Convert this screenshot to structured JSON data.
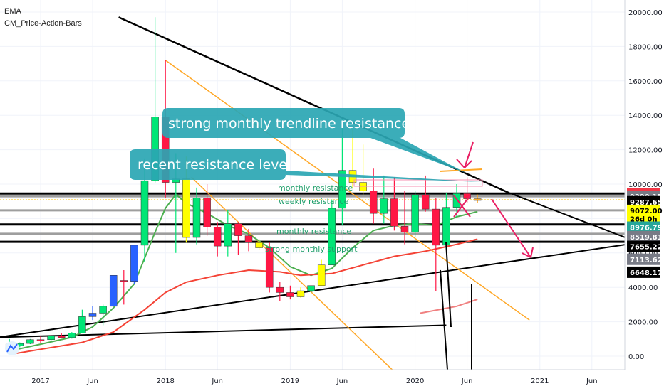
{
  "indicators": [
    "EMA",
    "CM_Price-Action-Bars"
  ],
  "chart_data": {
    "type": "candlestick",
    "ylim": [
      -900,
      20700
    ],
    "y_ticks": [
      0,
      2000,
      4000,
      6000,
      8000,
      10000,
      12000,
      14000,
      16000,
      18000,
      20000
    ],
    "y_tick_labels": [
      "0.00",
      "2000.00",
      "4000.00",
      "6000.00",
      "8000.00",
      "10000.00",
      "12000.00",
      "14000.00",
      "16000.00",
      "18000.00",
      "20000.00"
    ],
    "x_labels": [
      {
        "label": "2017",
        "month": 0
      },
      {
        "label": "Jun",
        "month": 5
      },
      {
        "label": "2018",
        "month": 12
      },
      {
        "label": "Jun",
        "month": 17
      },
      {
        "label": "2019",
        "month": 24
      },
      {
        "label": "Jun",
        "month": 29
      },
      {
        "label": "2020",
        "month": 36
      },
      {
        "label": "Jun",
        "month": 41
      },
      {
        "label": "2021",
        "month": 48
      },
      {
        "label": "Jun",
        "month": 53
      }
    ],
    "candles": [
      {
        "m": -3,
        "o": 700,
        "h": 1000,
        "l": 480,
        "c": 580,
        "color": "#00e676"
      },
      {
        "m": -2,
        "o": 600,
        "h": 800,
        "l": 520,
        "c": 740,
        "color": "#00e676"
      },
      {
        "m": -1,
        "o": 740,
        "h": 1000,
        "l": 700,
        "c": 960,
        "color": "#00e676"
      },
      {
        "m": 0,
        "o": 960,
        "h": 1150,
        "l": 760,
        "c": 950,
        "color": "#ff1744"
      },
      {
        "m": 1,
        "o": 960,
        "h": 1200,
        "l": 920,
        "c": 1190,
        "color": "#00e676"
      },
      {
        "m": 2,
        "o": 1190,
        "h": 1350,
        "l": 1090,
        "c": 1080,
        "color": "#ff1744"
      },
      {
        "m": 3,
        "o": 1080,
        "h": 1400,
        "l": 1020,
        "c": 1350,
        "color": "#00e676"
      },
      {
        "m": 4,
        "o": 1350,
        "h": 2700,
        "l": 1350,
        "c": 2300,
        "color": "#00e676"
      },
      {
        "m": 5,
        "o": 2300,
        "h": 2900,
        "l": 2100,
        "c": 2500,
        "color": "#2962ff"
      },
      {
        "m": 6,
        "o": 2500,
        "h": 3000,
        "l": 1800,
        "c": 2900,
        "color": "#00e676"
      },
      {
        "m": 7,
        "o": 2900,
        "h": 4500,
        "l": 2900,
        "c": 4700,
        "color": "#2962ff"
      },
      {
        "m": 8,
        "o": 4400,
        "h": 5000,
        "l": 3000,
        "c": 4350,
        "color": "#ff1744"
      },
      {
        "m": 9,
        "o": 4350,
        "h": 6400,
        "l": 4200,
        "c": 6450,
        "color": "#2962ff"
      },
      {
        "m": 10,
        "o": 6450,
        "h": 11500,
        "l": 5500,
        "c": 10200,
        "color": "#00e676"
      },
      {
        "m": 11,
        "o": 10200,
        "h": 19700,
        "l": 10100,
        "c": 13900,
        "color": "#00e676"
      },
      {
        "m": 12,
        "o": 13900,
        "h": 17200,
        "l": 9200,
        "c": 10100,
        "color": "#ff1744"
      },
      {
        "m": 13,
        "o": 10100,
        "h": 11800,
        "l": 6000,
        "c": 10300,
        "color": "#00e676"
      },
      {
        "m": 14,
        "o": 10300,
        "h": 11600,
        "l": 6600,
        "c": 6900,
        "color": "#ffff00"
      },
      {
        "m": 15,
        "o": 6900,
        "h": 9800,
        "l": 6500,
        "c": 9200,
        "color": "#00e676"
      },
      {
        "m": 16,
        "o": 9200,
        "h": 10000,
        "l": 7000,
        "c": 7500,
        "color": "#ff1744"
      },
      {
        "m": 17,
        "o": 7500,
        "h": 7800,
        "l": 5800,
        "c": 6400,
        "color": "#ff1744"
      },
      {
        "m": 18,
        "o": 6400,
        "h": 8500,
        "l": 5800,
        "c": 7700,
        "color": "#00e676"
      },
      {
        "m": 19,
        "o": 7700,
        "h": 7800,
        "l": 5900,
        "c": 7000,
        "color": "#ff1744"
      },
      {
        "m": 20,
        "o": 7000,
        "h": 7400,
        "l": 6100,
        "c": 6600,
        "color": "#ff1744"
      },
      {
        "m": 21,
        "o": 6600,
        "h": 6800,
        "l": 6200,
        "c": 6300,
        "color": "#ffff00"
      },
      {
        "m": 22,
        "o": 6300,
        "h": 6600,
        "l": 3700,
        "c": 4000,
        "color": "#ff1744"
      },
      {
        "m": 23,
        "o": 4000,
        "h": 4300,
        "l": 3200,
        "c": 3700,
        "color": "#ff1744"
      },
      {
        "m": 24,
        "o": 3700,
        "h": 4100,
        "l": 3300,
        "c": 3450,
        "color": "#ff1744"
      },
      {
        "m": 25,
        "o": 3450,
        "h": 4000,
        "l": 3400,
        "c": 3800,
        "color": "#ffff00"
      },
      {
        "m": 26,
        "o": 3800,
        "h": 4100,
        "l": 3700,
        "c": 4100,
        "color": "#00e676"
      },
      {
        "m": 27,
        "o": 4100,
        "h": 5600,
        "l": 4100,
        "c": 5300,
        "color": "#ffff00"
      },
      {
        "m": 28,
        "o": 5300,
        "h": 9100,
        "l": 5300,
        "c": 8600,
        "color": "#00e676"
      },
      {
        "m": 29,
        "o": 8600,
        "h": 13800,
        "l": 7600,
        "c": 10800,
        "color": "#00e676"
      },
      {
        "m": 30,
        "o": 10800,
        "h": 13200,
        "l": 9800,
        "c": 10100,
        "color": "#ffff00"
      },
      {
        "m": 31,
        "o": 10100,
        "h": 12300,
        "l": 9400,
        "c": 9600,
        "color": "#ffff00"
      },
      {
        "m": 32,
        "o": 9600,
        "h": 10900,
        "l": 7700,
        "c": 8300,
        "color": "#ff1744"
      },
      {
        "m": 33,
        "o": 8300,
        "h": 10500,
        "l": 7700,
        "c": 9150,
        "color": "#00e676"
      },
      {
        "m": 34,
        "o": 9150,
        "h": 10400,
        "l": 7300,
        "c": 7550,
        "color": "#ff1744"
      },
      {
        "m": 35,
        "o": 7550,
        "h": 9600,
        "l": 6500,
        "c": 7200,
        "color": "#ff1744"
      },
      {
        "m": 36,
        "o": 7200,
        "h": 9600,
        "l": 6900,
        "c": 9350,
        "color": "#00e676"
      },
      {
        "m": 37,
        "o": 9350,
        "h": 10500,
        "l": 8400,
        "c": 8550,
        "color": "#ff1744"
      },
      {
        "m": 38,
        "o": 8550,
        "h": 9200,
        "l": 3800,
        "c": 6450,
        "color": "#ff1744"
      },
      {
        "m": 39,
        "o": 6450,
        "h": 9500,
        "l": 6200,
        "c": 8650,
        "color": "#00e676"
      },
      {
        "m": 40,
        "o": 8650,
        "h": 10000,
        "l": 8100,
        "c": 9450,
        "color": "#00e676"
      },
      {
        "m": 41,
        "o": 9450,
        "h": 10400,
        "l": 8900,
        "c": 9150,
        "color": "#ff1744"
      },
      {
        "m": 42,
        "o": 9150,
        "h": 9400,
        "l": 8900,
        "c": 9050,
        "color": "#ffa726"
      }
    ],
    "ema_series": [
      {
        "color": "#4caf50",
        "points": [
          [
            -3,
            300
          ],
          [
            0,
            700
          ],
          [
            3,
            1100
          ],
          [
            5,
            1700
          ],
          [
            7,
            2800
          ],
          [
            9,
            4200
          ],
          [
            11,
            7200
          ],
          [
            12,
            8600
          ],
          [
            13,
            9400
          ],
          [
            14,
            8900
          ],
          [
            16,
            8300
          ],
          [
            18,
            7600
          ],
          [
            20,
            7100
          ],
          [
            22,
            6300
          ],
          [
            24,
            5200
          ],
          [
            26,
            4700
          ],
          [
            28,
            5100
          ],
          [
            30,
            6300
          ],
          [
            32,
            7300
          ],
          [
            34,
            7600
          ],
          [
            36,
            7700
          ],
          [
            38,
            7600
          ],
          [
            40,
            8100
          ],
          [
            42,
            8400
          ]
        ]
      },
      {
        "color": "#f44336",
        "points": [
          [
            -3,
            100
          ],
          [
            0,
            400
          ],
          [
            4,
            800
          ],
          [
            7,
            1400
          ],
          [
            10,
            2700
          ],
          [
            12,
            3700
          ],
          [
            14,
            4300
          ],
          [
            17,
            4700
          ],
          [
            20,
            5000
          ],
          [
            23,
            4900
          ],
          [
            25,
            4700
          ],
          [
            28,
            4800
          ],
          [
            31,
            5300
          ],
          [
            34,
            5800
          ],
          [
            37,
            6100
          ],
          [
            40,
            6500
          ],
          [
            42,
            6800
          ]
        ]
      },
      {
        "color": "#f08080",
        "points": [
          [
            36.5,
            2500
          ],
          [
            40,
            2900
          ],
          [
            42,
            3300
          ]
        ]
      }
    ],
    "level_lines": [
      {
        "value": 9451.58,
        "color": "#000000",
        "width": 3
      },
      {
        "value": 9290.15,
        "color": "#9e9e9e",
        "width": 3
      },
      {
        "value": 8476,
        "color": "#9e9e9e",
        "width": 3
      },
      {
        "value": 7655.22,
        "color": "#000000",
        "width": 3
      },
      {
        "value": 7113.62,
        "color": "#9e9e9e",
        "width": 3
      },
      {
        "value": 6648.17,
        "color": "#000000",
        "width": 3
      }
    ],
    "trendlines": [
      {
        "color": "#000000",
        "width": 2.5,
        "from": [
          7.5,
          19700
        ],
        "to": [
          45,
          9500
        ]
      },
      {
        "color": "#000000",
        "width": 2,
        "from": [
          -4,
          1100
        ],
        "to": [
          57.5,
          6600
        ]
      },
      {
        "color": "#000000",
        "width": 2,
        "from": [
          45,
          9500
        ],
        "to": [
          57.5,
          6600
        ]
      },
      {
        "color": "#000000",
        "width": 2,
        "from": [
          -4,
          1100
        ],
        "to": [
          39,
          1800
        ]
      },
      {
        "color": "#ffa726",
        "width": 1.5,
        "from": [
          12,
          17200
        ],
        "to": [
          47,
          2100
        ]
      },
      {
        "color": "#ffa726",
        "width": 1.5,
        "from": [
          14.5,
          10400
        ],
        "to": [
          34,
          -900
        ]
      }
    ],
    "annotations": [
      {
        "text": "strong monthly  trendline resistance",
        "type": "callout"
      },
      {
        "text": "recent resistance level",
        "type": "callout"
      },
      {
        "text": "monthly resistance",
        "type": "level-label"
      },
      {
        "text": "weekly resistance",
        "type": "level-label"
      },
      {
        "text": "monthly resistance",
        "type": "level-label"
      },
      {
        "text": "strong monthly support",
        "type": "level-label"
      }
    ],
    "price_tags": [
      {
        "value": 9451.58,
        "label": "9451.58",
        "bg": "#f23645",
        "fg": "#ffffff"
      },
      {
        "value": 9290.15,
        "label": "9290.15",
        "bg": "#787b86",
        "fg": "#ffffff"
      },
      {
        "value": 8976,
        "label": "9287.65",
        "bg": "#000000",
        "fg": "#ffffff"
      },
      {
        "value": 8476,
        "label": "9072.00",
        "bg": "#ffff00",
        "fg": "#000000"
      },
      {
        "value": 8000,
        "label": "26d 0h",
        "bg": "#ffff00",
        "fg": "#000000"
      },
      {
        "value": 7500,
        "label": "8976.79",
        "bg": "#26a69a",
        "fg": "#ffffff"
      },
      {
        "value": 6950,
        "label": "8519.81",
        "bg": "#787b86",
        "fg": "#ffffff"
      },
      {
        "value": 6380,
        "label": "7655.22",
        "bg": "#000000",
        "fg": "#ffffff"
      },
      {
        "value": 5630,
        "label": "7113.62",
        "bg": "#787b86",
        "fg": "#ffffff"
      },
      {
        "value": 4880,
        "label": "6648.17",
        "bg": "#000000",
        "fg": "#ffffff"
      }
    ]
  }
}
